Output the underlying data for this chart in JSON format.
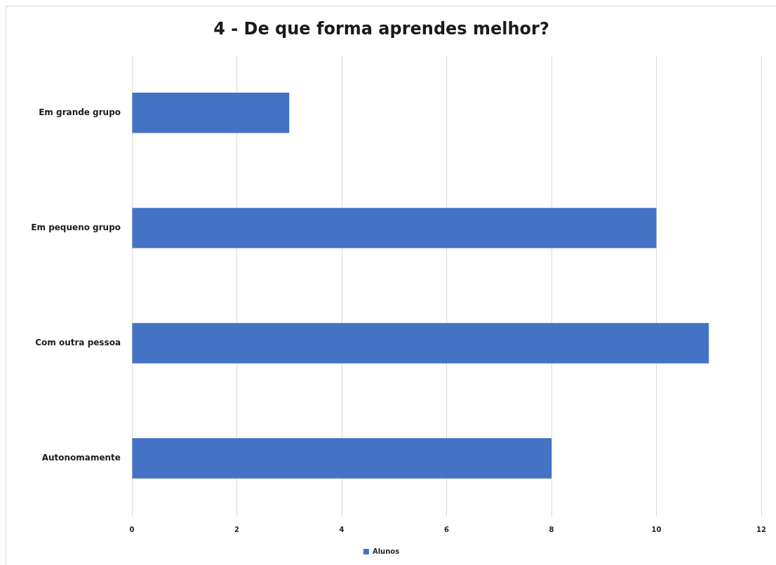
{
  "chart_data": {
    "type": "bar",
    "title": "4 - De que forma aprendes melhor?",
    "orientation": "horizontal",
    "categories": [
      "Em grande grupo",
      "Em pequeno grupo",
      "Com outra pessoa",
      "Autonomamente"
    ],
    "series": [
      {
        "name": "Alunos",
        "color": "#4472c4",
        "values": [
          3,
          10,
          11,
          8
        ]
      }
    ],
    "xlim": [
      0,
      12
    ],
    "xticks": [
      0,
      2,
      4,
      6,
      8,
      10,
      12
    ],
    "grid": "x",
    "legend": "bottom"
  }
}
